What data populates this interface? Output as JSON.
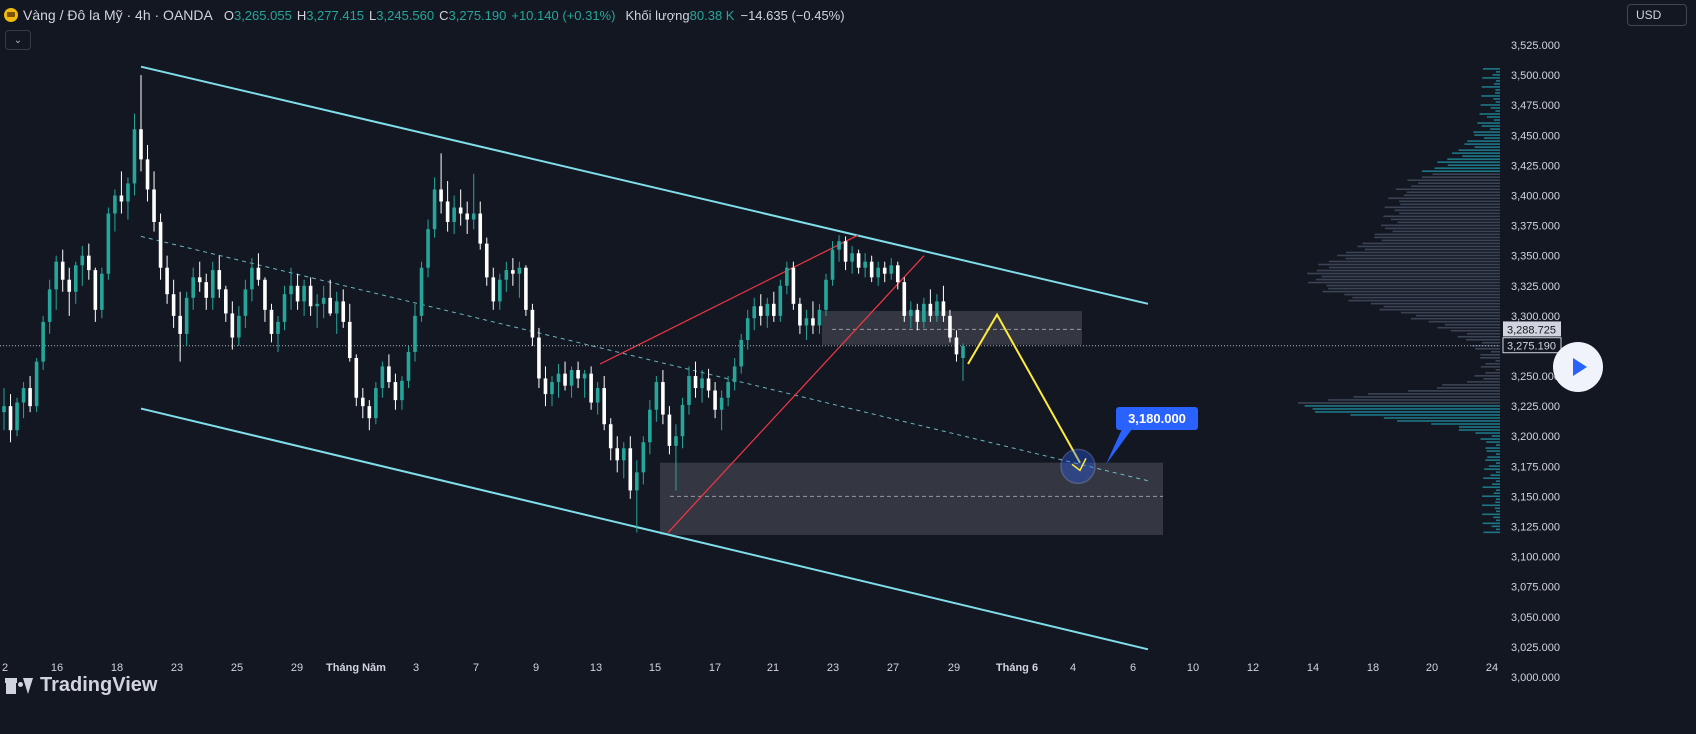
{
  "header": {
    "symbol_title": "Vàng / Đô la Mỹ · 4h · OANDA",
    "o_label": "O",
    "o_value": "3,265.055",
    "h_label": "H",
    "h_value": "3,277.415",
    "l_label": "L",
    "l_value": "3,245.560",
    "c_label": "C",
    "c_value": "3,275.190",
    "change": "+10.140 (+0.31%)",
    "volume_label": "Khối lượng",
    "volume_value": "80.38 K",
    "volume_change": "−14.635 (−0.45%)"
  },
  "currency": "USD",
  "logo": "TradingView",
  "icons": {
    "symbol": "gold-coin-icon",
    "collapse": "chevron-down-icon",
    "play": "play-icon"
  },
  "colors": {
    "up": "#26a69a",
    "down": "#ffffff",
    "channel": "#80deea",
    "wedge": "#f23645",
    "projection": "#ffeb3b",
    "target_badge": "#2962ff"
  },
  "chart_data": {
    "type": "candlestick",
    "y_ticks": [
      3525,
      3500,
      3475,
      3450,
      3425,
      3400,
      3375,
      3350,
      3325,
      3300,
      3275,
      3250,
      3225,
      3200,
      3175,
      3150,
      3125,
      3100,
      3075,
      3050,
      3025,
      3000
    ],
    "y_tick_labels": [
      "3,525.000",
      "3,500.000",
      "3,475.000",
      "3,450.000",
      "3,425.000",
      "3,400.000",
      "3,375.000",
      "3,350.000",
      "3,325.000",
      "3,300.000",
      "3,275.000",
      "3,250.000",
      "3,225.000",
      "3,200.000",
      "3,175.000",
      "3,150.000",
      "3,125.000",
      "3,100.000",
      "3,075.000",
      "3,050.000",
      "3,025.000",
      "3,000.000"
    ],
    "ylim": [
      2995,
      3545
    ],
    "x_ticks": [
      "2",
      "16",
      "18",
      "23",
      "25",
      "29",
      "Tháng Năm",
      "3",
      "7",
      "9",
      "13",
      "15",
      "17",
      "21",
      "23",
      "27",
      "29",
      "Tháng 6",
      "4",
      "6",
      "10",
      "12",
      "14",
      "18",
      "20",
      "24"
    ],
    "last_price": 3275.19,
    "last_price_label": "3,275.190",
    "zone_mid_price": 3288.725,
    "zone_mid_label": "3,288.725",
    "target_label": "3,180.000",
    "target_price": 3180,
    "channel": {
      "upper": [
        [
          3507,
          3310
        ]
      ],
      "lower": [
        [
          3223,
          3023
        ]
      ],
      "mid": [
        [
          3366,
          3163
        ]
      ]
    },
    "zones": [
      {
        "name": "supply",
        "top": 3304,
        "bottom": 3276,
        "mid": 3288.725
      },
      {
        "name": "demand",
        "top": 3178,
        "bottom": 3118,
        "mid": 3150
      }
    ],
    "wedge": {
      "upper": [
        3260,
        3367
      ],
      "lower": [
        3120,
        3350
      ]
    },
    "projection": [
      3260,
      3301,
      3178
    ],
    "candles": [
      {
        "o": 3220,
        "h": 3240,
        "l": 3205,
        "c": 3225
      },
      {
        "o": 3225,
        "h": 3235,
        "l": 3195,
        "c": 3205
      },
      {
        "o": 3205,
        "h": 3232,
        "l": 3200,
        "c": 3228
      },
      {
        "o": 3228,
        "h": 3245,
        "l": 3215,
        "c": 3240
      },
      {
        "o": 3240,
        "h": 3250,
        "l": 3220,
        "c": 3225
      },
      {
        "o": 3225,
        "h": 3265,
        "l": 3220,
        "c": 3262
      },
      {
        "o": 3262,
        "h": 3300,
        "l": 3255,
        "c": 3295
      },
      {
        "o": 3295,
        "h": 3330,
        "l": 3285,
        "c": 3322
      },
      {
        "o": 3322,
        "h": 3350,
        "l": 3305,
        "c": 3345
      },
      {
        "o": 3345,
        "h": 3355,
        "l": 3320,
        "c": 3330
      },
      {
        "o": 3330,
        "h": 3340,
        "l": 3300,
        "c": 3320
      },
      {
        "o": 3320,
        "h": 3345,
        "l": 3310,
        "c": 3342
      },
      {
        "o": 3342,
        "h": 3358,
        "l": 3325,
        "c": 3350
      },
      {
        "o": 3350,
        "h": 3360,
        "l": 3330,
        "c": 3338
      },
      {
        "o": 3338,
        "h": 3340,
        "l": 3295,
        "c": 3305
      },
      {
        "o": 3305,
        "h": 3340,
        "l": 3298,
        "c": 3335
      },
      {
        "o": 3335,
        "h": 3390,
        "l": 3330,
        "c": 3385
      },
      {
        "o": 3385,
        "h": 3405,
        "l": 3370,
        "c": 3400
      },
      {
        "o": 3400,
        "h": 3420,
        "l": 3385,
        "c": 3395
      },
      {
        "o": 3395,
        "h": 3415,
        "l": 3380,
        "c": 3410
      },
      {
        "o": 3410,
        "h": 3468,
        "l": 3400,
        "c": 3455
      },
      {
        "o": 3455,
        "h": 3500,
        "l": 3420,
        "c": 3430
      },
      {
        "o": 3430,
        "h": 3442,
        "l": 3395,
        "c": 3405
      },
      {
        "o": 3405,
        "h": 3420,
        "l": 3370,
        "c": 3378
      },
      {
        "o": 3378,
        "h": 3385,
        "l": 3330,
        "c": 3340
      },
      {
        "o": 3340,
        "h": 3350,
        "l": 3310,
        "c": 3318
      },
      {
        "o": 3318,
        "h": 3330,
        "l": 3290,
        "c": 3300
      },
      {
        "o": 3300,
        "h": 3320,
        "l": 3262,
        "c": 3285
      },
      {
        "o": 3285,
        "h": 3320,
        "l": 3275,
        "c": 3315
      },
      {
        "o": 3315,
        "h": 3340,
        "l": 3305,
        "c": 3332
      },
      {
        "o": 3332,
        "h": 3345,
        "l": 3320,
        "c": 3328
      },
      {
        "o": 3328,
        "h": 3335,
        "l": 3305,
        "c": 3315
      },
      {
        "o": 3315,
        "h": 3345,
        "l": 3305,
        "c": 3338
      },
      {
        "o": 3338,
        "h": 3350,
        "l": 3315,
        "c": 3322
      },
      {
        "o": 3322,
        "h": 3325,
        "l": 3295,
        "c": 3302
      },
      {
        "o": 3302,
        "h": 3312,
        "l": 3272,
        "c": 3282
      },
      {
        "o": 3282,
        "h": 3308,
        "l": 3275,
        "c": 3300
      },
      {
        "o": 3300,
        "h": 3330,
        "l": 3290,
        "c": 3322
      },
      {
        "o": 3322,
        "h": 3348,
        "l": 3312,
        "c": 3340
      },
      {
        "o": 3340,
        "h": 3352,
        "l": 3325,
        "c": 3330
      },
      {
        "o": 3330,
        "h": 3332,
        "l": 3295,
        "c": 3305
      },
      {
        "o": 3305,
        "h": 3310,
        "l": 3278,
        "c": 3285
      },
      {
        "o": 3285,
        "h": 3300,
        "l": 3270,
        "c": 3295
      },
      {
        "o": 3295,
        "h": 3325,
        "l": 3288,
        "c": 3318
      },
      {
        "o": 3318,
        "h": 3340,
        "l": 3305,
        "c": 3325
      },
      {
        "o": 3325,
        "h": 3335,
        "l": 3305,
        "c": 3312
      },
      {
        "o": 3312,
        "h": 3330,
        "l": 3300,
        "c": 3325
      },
      {
        "o": 3325,
        "h": 3332,
        "l": 3300,
        "c": 3308
      },
      {
        "o": 3308,
        "h": 3318,
        "l": 3290,
        "c": 3310
      },
      {
        "o": 3310,
        "h": 3325,
        "l": 3298,
        "c": 3315
      },
      {
        "o": 3315,
        "h": 3330,
        "l": 3300,
        "c": 3302
      },
      {
        "o": 3302,
        "h": 3320,
        "l": 3285,
        "c": 3312
      },
      {
        "o": 3312,
        "h": 3322,
        "l": 3290,
        "c": 3295
      },
      {
        "o": 3295,
        "h": 3310,
        "l": 3262,
        "c": 3265
      },
      {
        "o": 3265,
        "h": 3268,
        "l": 3225,
        "c": 3232
      },
      {
        "o": 3232,
        "h": 3240,
        "l": 3215,
        "c": 3225
      },
      {
        "o": 3225,
        "h": 3230,
        "l": 3205,
        "c": 3215
      },
      {
        "o": 3215,
        "h": 3245,
        "l": 3210,
        "c": 3240
      },
      {
        "o": 3240,
        "h": 3262,
        "l": 3232,
        "c": 3258
      },
      {
        "o": 3258,
        "h": 3268,
        "l": 3240,
        "c": 3245
      },
      {
        "o": 3245,
        "h": 3252,
        "l": 3222,
        "c": 3230
      },
      {
        "o": 3230,
        "h": 3250,
        "l": 3222,
        "c": 3246
      },
      {
        "o": 3246,
        "h": 3275,
        "l": 3240,
        "c": 3270
      },
      {
        "o": 3270,
        "h": 3310,
        "l": 3262,
        "c": 3300
      },
      {
        "o": 3300,
        "h": 3345,
        "l": 3295,
        "c": 3340
      },
      {
        "o": 3340,
        "h": 3380,
        "l": 3332,
        "c": 3372
      },
      {
        "o": 3372,
        "h": 3415,
        "l": 3365,
        "c": 3405
      },
      {
        "o": 3405,
        "h": 3435,
        "l": 3385,
        "c": 3395
      },
      {
        "o": 3395,
        "h": 3412,
        "l": 3370,
        "c": 3378
      },
      {
        "o": 3378,
        "h": 3400,
        "l": 3368,
        "c": 3390
      },
      {
        "o": 3390,
        "h": 3405,
        "l": 3375,
        "c": 3385
      },
      {
        "o": 3385,
        "h": 3395,
        "l": 3368,
        "c": 3380
      },
      {
        "o": 3380,
        "h": 3418,
        "l": 3372,
        "c": 3385
      },
      {
        "o": 3385,
        "h": 3395,
        "l": 3355,
        "c": 3360
      },
      {
        "o": 3360,
        "h": 3365,
        "l": 3325,
        "c": 3332
      },
      {
        "o": 3332,
        "h": 3340,
        "l": 3305,
        "c": 3312
      },
      {
        "o": 3312,
        "h": 3335,
        "l": 3305,
        "c": 3330
      },
      {
        "o": 3330,
        "h": 3345,
        "l": 3320,
        "c": 3338
      },
      {
        "o": 3338,
        "h": 3348,
        "l": 3325,
        "c": 3335
      },
      {
        "o": 3335,
        "h": 3345,
        "l": 3315,
        "c": 3340
      },
      {
        "o": 3340,
        "h": 3342,
        "l": 3300,
        "c": 3305
      },
      {
        "o": 3305,
        "h": 3310,
        "l": 3275,
        "c": 3282
      },
      {
        "o": 3282,
        "h": 3290,
        "l": 3240,
        "c": 3248
      },
      {
        "o": 3248,
        "h": 3258,
        "l": 3225,
        "c": 3235
      },
      {
        "o": 3235,
        "h": 3250,
        "l": 3225,
        "c": 3245
      },
      {
        "o": 3245,
        "h": 3260,
        "l": 3232,
        "c": 3252
      },
      {
        "o": 3252,
        "h": 3262,
        "l": 3238,
        "c": 3242
      },
      {
        "o": 3242,
        "h": 3258,
        "l": 3232,
        "c": 3255
      },
      {
        "o": 3255,
        "h": 3262,
        "l": 3240,
        "c": 3248
      },
      {
        "o": 3248,
        "h": 3255,
        "l": 3232,
        "c": 3252
      },
      {
        "o": 3252,
        "h": 3258,
        "l": 3222,
        "c": 3228
      },
      {
        "o": 3228,
        "h": 3245,
        "l": 3218,
        "c": 3240
      },
      {
        "o": 3240,
        "h": 3250,
        "l": 3205,
        "c": 3210
      },
      {
        "o": 3210,
        "h": 3215,
        "l": 3180,
        "c": 3190
      },
      {
        "o": 3190,
        "h": 3200,
        "l": 3170,
        "c": 3180
      },
      {
        "o": 3180,
        "h": 3195,
        "l": 3165,
        "c": 3190
      },
      {
        "o": 3190,
        "h": 3200,
        "l": 3148,
        "c": 3155
      },
      {
        "o": 3155,
        "h": 3180,
        "l": 3120,
        "c": 3170
      },
      {
        "o": 3170,
        "h": 3200,
        "l": 3160,
        "c": 3195
      },
      {
        "o": 3195,
        "h": 3230,
        "l": 3185,
        "c": 3222
      },
      {
        "o": 3222,
        "h": 3250,
        "l": 3212,
        "c": 3245
      },
      {
        "o": 3245,
        "h": 3255,
        "l": 3210,
        "c": 3218
      },
      {
        "o": 3218,
        "h": 3225,
        "l": 3185,
        "c": 3192
      },
      {
        "o": 3192,
        "h": 3210,
        "l": 3155,
        "c": 3200
      },
      {
        "o": 3200,
        "h": 3232,
        "l": 3190,
        "c": 3226
      },
      {
        "o": 3226,
        "h": 3258,
        "l": 3218,
        "c": 3250
      },
      {
        "o": 3250,
        "h": 3262,
        "l": 3232,
        "c": 3240
      },
      {
        "o": 3240,
        "h": 3255,
        "l": 3228,
        "c": 3248
      },
      {
        "o": 3248,
        "h": 3256,
        "l": 3232,
        "c": 3238
      },
      {
        "o": 3238,
        "h": 3245,
        "l": 3215,
        "c": 3222
      },
      {
        "o": 3222,
        "h": 3238,
        "l": 3205,
        "c": 3232
      },
      {
        "o": 3232,
        "h": 3250,
        "l": 3225,
        "c": 3245
      },
      {
        "o": 3245,
        "h": 3265,
        "l": 3238,
        "c": 3258
      },
      {
        "o": 3258,
        "h": 3285,
        "l": 3252,
        "c": 3280
      },
      {
        "o": 3280,
        "h": 3305,
        "l": 3272,
        "c": 3298
      },
      {
        "o": 3298,
        "h": 3315,
        "l": 3288,
        "c": 3308
      },
      {
        "o": 3308,
        "h": 3318,
        "l": 3292,
        "c": 3300
      },
      {
        "o": 3300,
        "h": 3315,
        "l": 3290,
        "c": 3310
      },
      {
        "o": 3310,
        "h": 3320,
        "l": 3295,
        "c": 3300
      },
      {
        "o": 3300,
        "h": 3330,
        "l": 3295,
        "c": 3325
      },
      {
        "o": 3325,
        "h": 3345,
        "l": 3318,
        "c": 3340
      },
      {
        "o": 3340,
        "h": 3345,
        "l": 3305,
        "c": 3310
      },
      {
        "o": 3310,
        "h": 3315,
        "l": 3285,
        "c": 3292
      },
      {
        "o": 3292,
        "h": 3305,
        "l": 3280,
        "c": 3298
      },
      {
        "o": 3298,
        "h": 3312,
        "l": 3285,
        "c": 3292
      },
      {
        "o": 3292,
        "h": 3310,
        "l": 3285,
        "c": 3305
      },
      {
        "o": 3305,
        "h": 3335,
        "l": 3300,
        "c": 3330
      },
      {
        "o": 3330,
        "h": 3362,
        "l": 3325,
        "c": 3355
      },
      {
        "o": 3355,
        "h": 3367,
        "l": 3345,
        "c": 3362
      },
      {
        "o": 3362,
        "h": 3366,
        "l": 3338,
        "c": 3345
      },
      {
        "o": 3345,
        "h": 3358,
        "l": 3335,
        "c": 3352
      },
      {
        "o": 3352,
        "h": 3355,
        "l": 3335,
        "c": 3340
      },
      {
        "o": 3340,
        "h": 3352,
        "l": 3332,
        "c": 3345
      },
      {
        "o": 3345,
        "h": 3350,
        "l": 3328,
        "c": 3332
      },
      {
        "o": 3332,
        "h": 3345,
        "l": 3325,
        "c": 3340
      },
      {
        "o": 3340,
        "h": 3345,
        "l": 3328,
        "c": 3335
      },
      {
        "o": 3335,
        "h": 3348,
        "l": 3330,
        "c": 3342
      },
      {
        "o": 3342,
        "h": 3345,
        "l": 3322,
        "c": 3328
      },
      {
        "o": 3328,
        "h": 3332,
        "l": 3295,
        "c": 3300
      },
      {
        "o": 3300,
        "h": 3312,
        "l": 3290,
        "c": 3305
      },
      {
        "o": 3305,
        "h": 3310,
        "l": 3288,
        "c": 3295
      },
      {
        "o": 3295,
        "h": 3315,
        "l": 3290,
        "c": 3310
      },
      {
        "o": 3310,
        "h": 3322,
        "l": 3295,
        "c": 3300
      },
      {
        "o": 3300,
        "h": 3318,
        "l": 3295,
        "c": 3312
      },
      {
        "o": 3312,
        "h": 3325,
        "l": 3295,
        "c": 3300
      },
      {
        "o": 3300,
        "h": 3305,
        "l": 3278,
        "c": 3282
      },
      {
        "o": 3282,
        "h": 3288,
        "l": 3262,
        "c": 3268
      },
      {
        "o": 3265,
        "h": 3277,
        "l": 3246,
        "c": 3275
      }
    ]
  }
}
